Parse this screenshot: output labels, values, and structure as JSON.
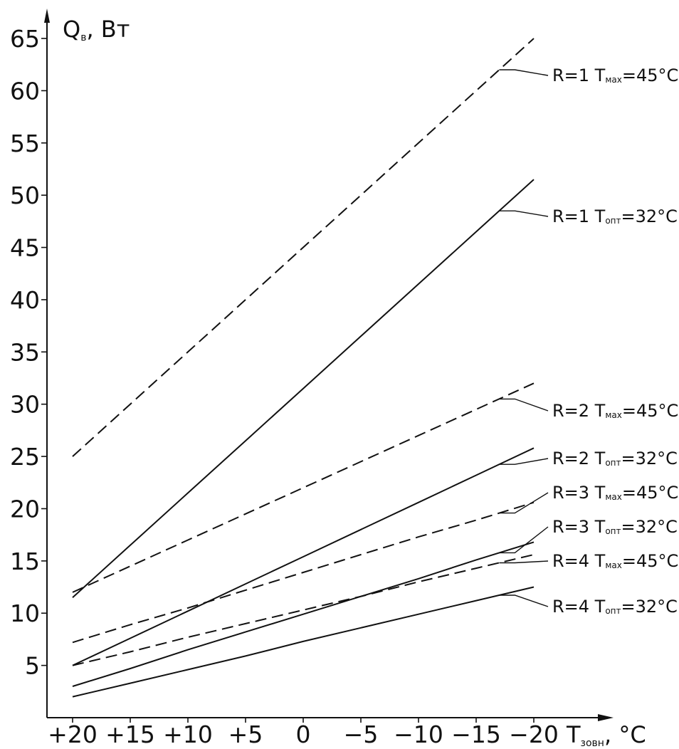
{
  "chart_data": {
    "type": "line",
    "title": "",
    "xlabel": "T_зовн, °C",
    "ylabel": "Q_в, Вт",
    "x_ticks": [
      "+20",
      "+15",
      "+10",
      "+5",
      "0",
      "−5",
      "−10",
      "−15",
      "−20"
    ],
    "y_ticks": [
      "5",
      "10",
      "15",
      "20",
      "25",
      "30",
      "35",
      "40",
      "45",
      "50",
      "55",
      "60",
      "65"
    ],
    "x_values": [
      20,
      15,
      10,
      5,
      0,
      -5,
      -10,
      -15,
      -20
    ],
    "xlim": [
      20,
      -20
    ],
    "ylim": [
      0,
      65
    ],
    "grid": false,
    "legend": "right labels with leader lines",
    "colors": {
      "ink": "#111111",
      "background": "#ffffff"
    },
    "series": [
      {
        "name": "R=1 Tмах=45°C",
        "label_prefix": "R=1 T",
        "label_sub": "мах",
        "label_suffix": "=45°C",
        "style": "dashed",
        "values": [
          25.0,
          30.0,
          35.0,
          40.0,
          45.0,
          50.0,
          55.0,
          60.0,
          65.0
        ]
      },
      {
        "name": "R=1 Tопт=32°C",
        "label_prefix": "R=1 T",
        "label_sub": "опт",
        "label_suffix": "=32°C",
        "style": "solid",
        "values": [
          11.5,
          16.5,
          21.5,
          26.5,
          31.5,
          36.5,
          41.5,
          46.5,
          51.5
        ]
      },
      {
        "name": "R=2 Tмах=45°C",
        "label_prefix": "R=2 T",
        "label_sub": "мах",
        "label_suffix": "=45°C",
        "style": "dashed",
        "values": [
          12.0,
          14.5,
          17.0,
          19.5,
          22.0,
          24.5,
          27.0,
          29.5,
          32.0
        ]
      },
      {
        "name": "R=2 Tопт=32°C",
        "label_prefix": "R=2 T",
        "label_sub": "опт",
        "label_suffix": "=32°C",
        "style": "solid",
        "values": [
          5.0,
          7.6,
          10.2,
          12.8,
          15.4,
          18.0,
          20.6,
          23.2,
          25.8
        ]
      },
      {
        "name": "R=3 Tмах=45°C",
        "label_prefix": "R=3 T",
        "label_sub": "мах",
        "label_suffix": "=45°C",
        "style": "dashed",
        "values": [
          7.2,
          8.9,
          10.5,
          12.2,
          13.9,
          15.6,
          17.3,
          18.9,
          20.6
        ]
      },
      {
        "name": "R=3 Tопт=32°C",
        "label_prefix": "R=3 T",
        "label_sub": "опт",
        "label_suffix": "=32°C",
        "style": "solid",
        "values": [
          3.0,
          4.7,
          6.5,
          8.2,
          9.9,
          11.6,
          13.3,
          15.1,
          16.8
        ]
      },
      {
        "name": "R=4 Tмах=45°C",
        "label_prefix": "R=4 T",
        "label_sub": "мах",
        "label_suffix": "=45°C",
        "style": "dashed",
        "values": [
          5.0,
          6.3,
          7.7,
          9.0,
          10.3,
          11.6,
          13.0,
          14.3,
          15.6
        ]
      },
      {
        "name": "R=4 Tопт=32°C",
        "label_prefix": "R=4 T",
        "label_sub": "опт",
        "label_suffix": "=32°C",
        "style": "solid",
        "values": [
          2.0,
          3.3,
          4.6,
          5.9,
          7.3,
          8.6,
          9.9,
          11.2,
          12.5
        ]
      }
    ]
  }
}
